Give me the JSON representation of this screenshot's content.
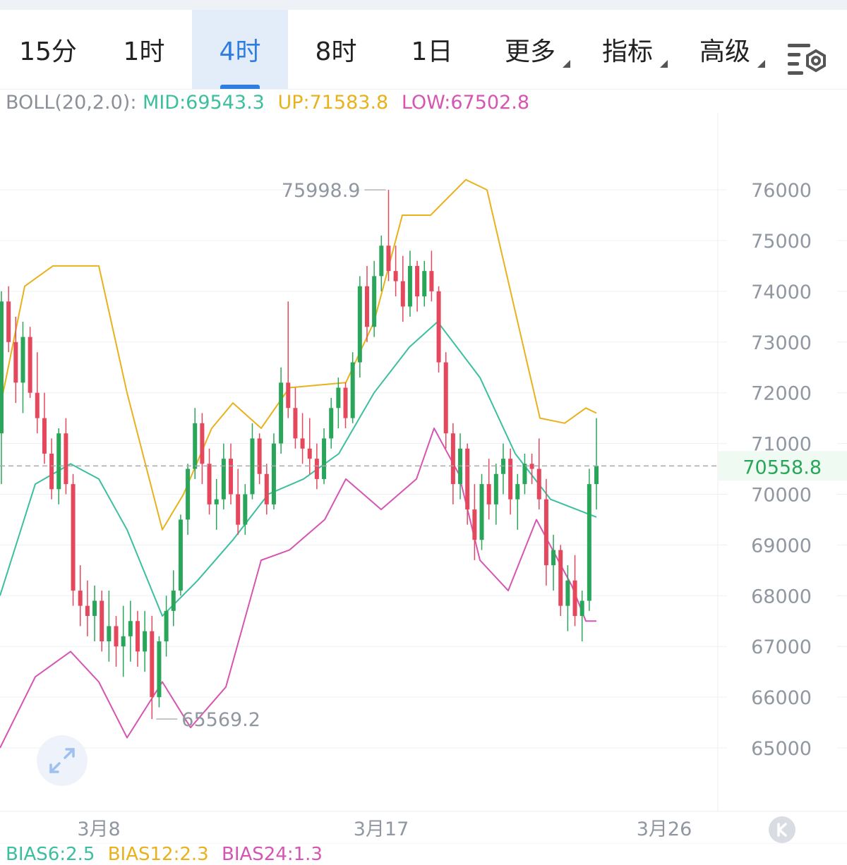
{
  "tabs": [
    {
      "label": "15分",
      "active": false,
      "dropdown": false
    },
    {
      "label": "1时",
      "active": false,
      "dropdown": false
    },
    {
      "label": "4时",
      "active": true,
      "dropdown": false
    },
    {
      "label": "8时",
      "active": false,
      "dropdown": false
    },
    {
      "label": "1日",
      "active": false,
      "dropdown": false
    },
    {
      "label": "更多",
      "active": false,
      "dropdown": true
    },
    {
      "label": "指标",
      "active": false,
      "dropdown": true
    },
    {
      "label": "高级",
      "active": false,
      "dropdown": true
    }
  ],
  "settings_icon": "chart-settings-icon",
  "legend": {
    "label": "BOLL(20,2.0):",
    "mid": "MID:69543.3",
    "up": "UP:71583.8",
    "low": "LOW:67502.8"
  },
  "bias": {
    "b6": "BIAS6:2.5",
    "b12": "BIAS12:2.3",
    "b24": "BIAS24:1.3"
  },
  "colors": {
    "up": "#2aa65a",
    "down": "#e5485d",
    "mid": "#3bbf9f",
    "upper": "#e8b21c",
    "lower": "#d655b3",
    "accent": "#2f7de1",
    "axis_text": "#9097a1"
  },
  "chart_data": {
    "type": "candlestick",
    "ylim": [
      64000,
      77000
    ],
    "yticks": [
      65000,
      66000,
      67000,
      68000,
      69000,
      70000,
      71000,
      72000,
      73000,
      74000,
      75000,
      76000
    ],
    "xticks": [
      "3月8",
      "3月17",
      "3月26"
    ],
    "current_price": "70558.8",
    "max_label": "75998.9",
    "min_label": "65569.2",
    "ohlc": [
      [
        71200,
        74000,
        70200,
        73800
      ],
      [
        73800,
        74100,
        72800,
        73000
      ],
      [
        73000,
        73500,
        71800,
        72200
      ],
      [
        72200,
        73400,
        71600,
        73100
      ],
      [
        73100,
        73300,
        71900,
        72000
      ],
      [
        72000,
        72800,
        71200,
        71500
      ],
      [
        71500,
        72000,
        70600,
        70800
      ],
      [
        70800,
        71100,
        69900,
        70100
      ],
      [
        70100,
        71300,
        69800,
        71200
      ],
      [
        71200,
        71500,
        70000,
        70200
      ],
      [
        70200,
        70400,
        67800,
        68100
      ],
      [
        68100,
        68600,
        67400,
        67800
      ],
      [
        67800,
        68300,
        67200,
        67600
      ],
      [
        67600,
        68200,
        67100,
        67900
      ],
      [
        67900,
        68100,
        66900,
        67100
      ],
      [
        67100,
        68100,
        66700,
        67400
      ],
      [
        67400,
        67600,
        66600,
        67000
      ],
      [
        67000,
        67800,
        66400,
        67200
      ],
      [
        67200,
        67900,
        66700,
        67500
      ],
      [
        67500,
        67700,
        66600,
        66900
      ],
      [
        66900,
        67700,
        66500,
        67300
      ],
      [
        67300,
        67600,
        65569,
        66000
      ],
      [
        66000,
        67200,
        65800,
        67100
      ],
      [
        67100,
        68000,
        66800,
        67700
      ],
      [
        67700,
        68500,
        67400,
        68100
      ],
      [
        68100,
        69600,
        68000,
        69500
      ],
      [
        69500,
        70600,
        69200,
        70500
      ],
      [
        70500,
        71700,
        70300,
        71400
      ],
      [
        71400,
        71600,
        70200,
        70600
      ],
      [
        70600,
        70900,
        69600,
        69800
      ],
      [
        69800,
        70300,
        69300,
        69900
      ],
      [
        69900,
        71000,
        69700,
        70700
      ],
      [
        70700,
        71000,
        69800,
        70000
      ],
      [
        70000,
        70500,
        69200,
        69400
      ],
      [
        69400,
        70200,
        69200,
        70000
      ],
      [
        70000,
        71400,
        69900,
        71100
      ],
      [
        71100,
        71200,
        70200,
        70400
      ],
      [
        70400,
        70600,
        69600,
        69800
      ],
      [
        69800,
        71200,
        69700,
        71000
      ],
      [
        71000,
        72500,
        70800,
        72200
      ],
      [
        72200,
        73800,
        71500,
        71700
      ],
      [
        71700,
        72100,
        70900,
        71100
      ],
      [
        71100,
        71600,
        70600,
        70900
      ],
      [
        70900,
        71500,
        70400,
        70700
      ],
      [
        70700,
        71000,
        70100,
        70300
      ],
      [
        70300,
        71300,
        70200,
        71100
      ],
      [
        71100,
        71900,
        70900,
        71700
      ],
      [
        71700,
        72300,
        71300,
        72100
      ],
      [
        72100,
        72200,
        71300,
        71500
      ],
      [
        71500,
        72800,
        71400,
        72600
      ],
      [
        72600,
        74300,
        72300,
        74100
      ],
      [
        74100,
        74500,
        73000,
        73300
      ],
      [
        73300,
        74600,
        73100,
        74300
      ],
      [
        74300,
        75100,
        74000,
        74900
      ],
      [
        74900,
        75999,
        74200,
        74400
      ],
      [
        74400,
        74900,
        73900,
        74200
      ],
      [
        74200,
        74700,
        73400,
        73700
      ],
      [
        73700,
        74800,
        73500,
        74500
      ],
      [
        74500,
        74600,
        73600,
        73900
      ],
      [
        73900,
        74600,
        73700,
        74400
      ],
      [
        74400,
        74800,
        73800,
        74000
      ],
      [
        74000,
        74100,
        72400,
        72600
      ],
      [
        72600,
        72800,
        70900,
        71200
      ],
      [
        71200,
        71400,
        69800,
        70200
      ],
      [
        70200,
        71200,
        69900,
        70900
      ],
      [
        70900,
        71000,
        69400,
        69700
      ],
      [
        69700,
        70200,
        68700,
        69100
      ],
      [
        69100,
        70400,
        68900,
        70200
      ],
      [
        70200,
        70700,
        69500,
        69800
      ],
      [
        69800,
        70600,
        69400,
        70400
      ],
      [
        70400,
        71000,
        70000,
        70700
      ],
      [
        70700,
        70900,
        69600,
        69900
      ],
      [
        69900,
        70400,
        69300,
        70200
      ],
      [
        70200,
        70800,
        70000,
        70600
      ],
      [
        70600,
        70800,
        70200,
        70500
      ],
      [
        70500,
        71100,
        69700,
        69900
      ],
      [
        69900,
        70300,
        68200,
        68600
      ],
      [
        68600,
        69200,
        68100,
        68900
      ],
      [
        68900,
        69000,
        67600,
        67800
      ],
      [
        67800,
        68600,
        67300,
        68300
      ],
      [
        68300,
        68800,
        67400,
        67600
      ],
      [
        67600,
        68100,
        67100,
        67900
      ],
      [
        67900,
        70500,
        67700,
        70200
      ],
      [
        70200,
        71500,
        69700,
        70559
      ]
    ],
    "mid_line": [
      [
        0,
        68000
      ],
      [
        50,
        70200
      ],
      [
        100,
        70600
      ],
      [
        140,
        70300
      ],
      [
        180,
        69300
      ],
      [
        230,
        67600
      ],
      [
        280,
        68300
      ],
      [
        330,
        69100
      ],
      [
        380,
        70000
      ],
      [
        430,
        70300
      ],
      [
        480,
        70800
      ],
      [
        530,
        72000
      ],
      [
        580,
        72900
      ],
      [
        620,
        73400
      ],
      [
        680,
        72300
      ],
      [
        730,
        70800
      ],
      [
        780,
        69900
      ],
      [
        845,
        69550
      ]
    ],
    "upper_line": [
      [
        0,
        71700
      ],
      [
        35,
        74100
      ],
      [
        75,
        74500
      ],
      [
        140,
        74500
      ],
      [
        180,
        72000
      ],
      [
        230,
        69300
      ],
      [
        260,
        70000
      ],
      [
        300,
        71300
      ],
      [
        330,
        71800
      ],
      [
        370,
        71300
      ],
      [
        410,
        72100
      ],
      [
        490,
        72200
      ],
      [
        530,
        73400
      ],
      [
        570,
        75500
      ],
      [
        610,
        75500
      ],
      [
        660,
        76200
      ],
      [
        690,
        76000
      ],
      [
        740,
        73000
      ],
      [
        765,
        71500
      ],
      [
        800,
        71400
      ],
      [
        830,
        71700
      ],
      [
        845,
        71600
      ]
    ],
    "lower_line": [
      [
        0,
        65000
      ],
      [
        50,
        66400
      ],
      [
        100,
        66900
      ],
      [
        140,
        66300
      ],
      [
        180,
        65200
      ],
      [
        230,
        66300
      ],
      [
        270,
        65400
      ],
      [
        320,
        66200
      ],
      [
        370,
        68700
      ],
      [
        410,
        68900
      ],
      [
        460,
        69500
      ],
      [
        490,
        70300
      ],
      [
        540,
        69700
      ],
      [
        590,
        70300
      ],
      [
        615,
        71300
      ],
      [
        650,
        70400
      ],
      [
        680,
        68700
      ],
      [
        720,
        68100
      ],
      [
        760,
        69500
      ],
      [
        810,
        68200
      ],
      [
        830,
        67500
      ],
      [
        845,
        67500
      ]
    ]
  }
}
